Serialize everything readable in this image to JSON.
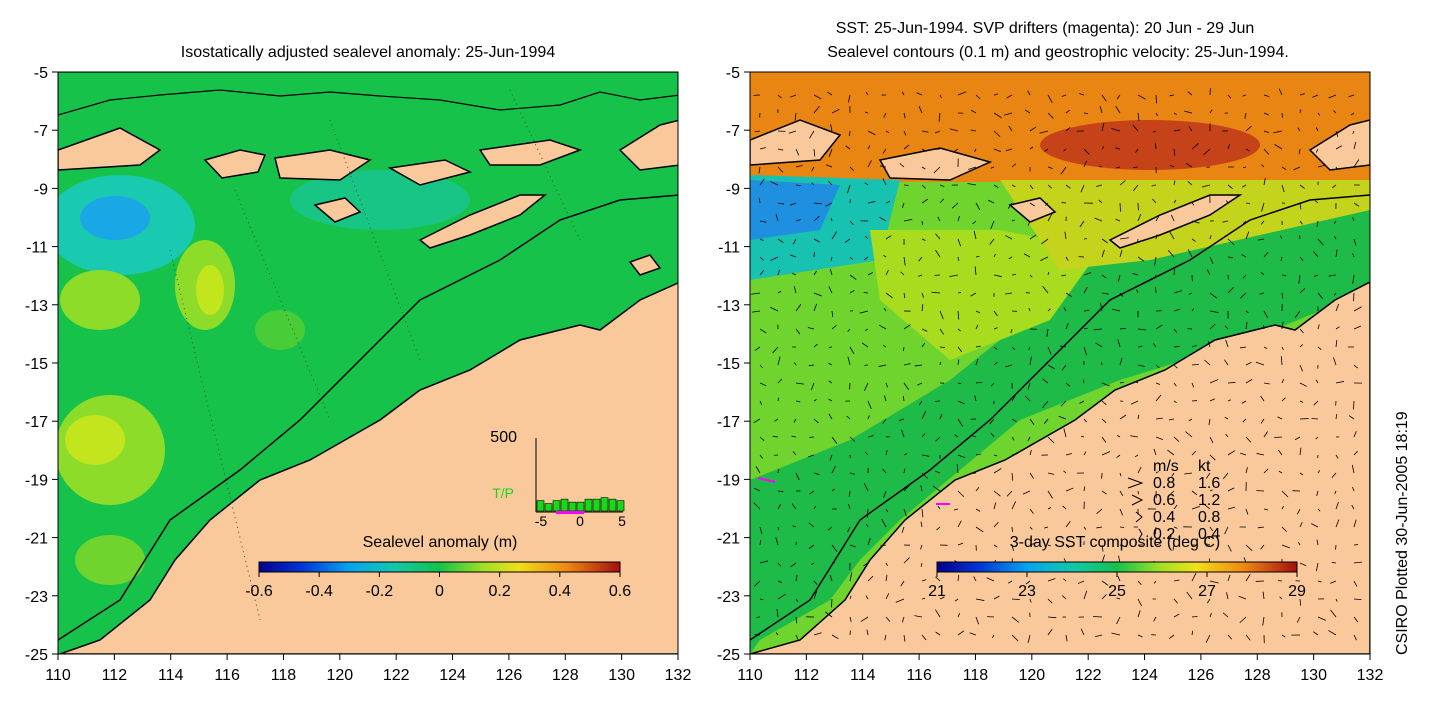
{
  "left_panel": {
    "title": "Isostatically adjusted sealevel anomaly: 25-Jun-1994",
    "colorbar_label": "Sealevel anomaly (m)",
    "colorbar_ticks": [
      "-0.6",
      "-0.4",
      "-0.2",
      "0",
      "0.2",
      "0.4",
      "0.6"
    ],
    "inset": {
      "ymax_label": "500",
      "series_label": "T/P",
      "x_ticks": [
        "-5",
        "0",
        "5"
      ],
      "bar_values": [
        0.14,
        0.1,
        0.14,
        0.16,
        0.12,
        0.12,
        0.16,
        0.16,
        0.18,
        0.16,
        0.14
      ]
    }
  },
  "right_panel": {
    "title_line1": "SST: 25-Jun-1994. SVP drifters (magenta): 20 Jun - 29 Jun",
    "title_line2": "Sealevel contours (0.1 m) and geostrophic velocity: 25-Jun-1994.",
    "colorbar_label": "3-day SST composite (deg C)",
    "colorbar_ticks": [
      "21",
      "23",
      "25",
      "27",
      "29"
    ],
    "legend": {
      "header_ms": "m/s",
      "header_kt": "kt",
      "rows": [
        {
          "ms": "0.8",
          "kt": "1.6"
        },
        {
          "ms": "0.6",
          "kt": "1.2"
        },
        {
          "ms": "0.4",
          "kt": "0.8"
        },
        {
          "ms": "0.2",
          "kt": "0.4"
        }
      ]
    }
  },
  "axes": {
    "y_ticks": [
      "-5",
      "-7",
      "-9",
      "-11",
      "-13",
      "-15",
      "-17",
      "-19",
      "-21",
      "-23",
      "-25"
    ],
    "x_ticks": [
      "110",
      "112",
      "114",
      "116",
      "118",
      "120",
      "122",
      "124",
      "126",
      "128",
      "130",
      "132"
    ]
  },
  "credit": "CSIRO Plotted 30-Jun-2005 18:19",
  "colors": {
    "land": "#f9c89b",
    "coast": "#000000",
    "ocean_green": "#16c24a",
    "ocean_cyan": "#19c9b0",
    "ocean_blue": "#1aa7e6",
    "ocean_lime": "#8edc2a",
    "sst_orange": "#e77a12",
    "drifter": "#ff00ff"
  }
}
